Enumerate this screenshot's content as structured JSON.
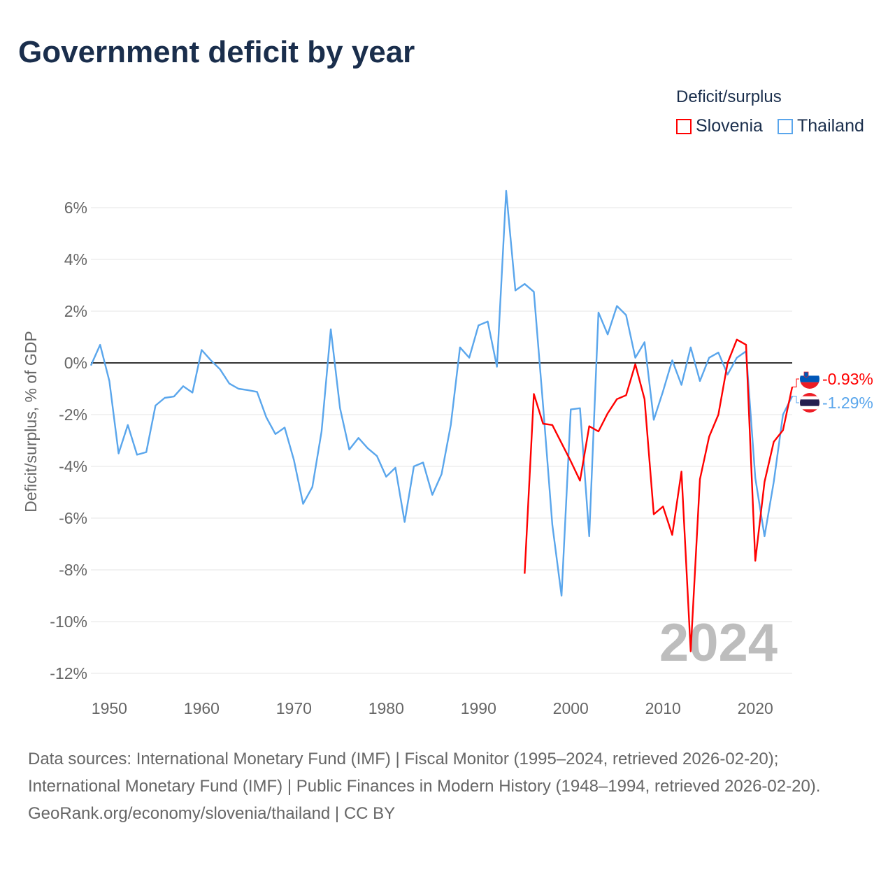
{
  "title": "Government deficit by year",
  "legend": {
    "title": "Deficit/surplus",
    "items": [
      {
        "label": "Slovenia",
        "color": "#ff0000"
      },
      {
        "label": "Thailand",
        "color": "#5aa6ec"
      }
    ]
  },
  "watermark_year": "2024",
  "chart_data": {
    "type": "line",
    "title": "Government deficit by year",
    "xlabel": "",
    "ylabel": "Deficit/surplus, % of GDP",
    "xlim": [
      1948,
      2024
    ],
    "ylim": [
      -12.6,
      7
    ],
    "yticks": [
      6,
      4,
      2,
      0,
      -2,
      -4,
      -6,
      -8,
      -10,
      -12
    ],
    "ytick_labels": [
      "6%",
      "4%",
      "2%",
      "0%",
      "-2%",
      "-4%",
      "-6%",
      "-8%",
      "-10%",
      "-12%"
    ],
    "xticks": [
      1950,
      1960,
      1970,
      1980,
      1990,
      2000,
      2010,
      2020
    ],
    "xtick_labels": [
      "1950",
      "1960",
      "1970",
      "1980",
      "1990",
      "2000",
      "2010",
      "2020"
    ],
    "grid": true,
    "legend_position": "top-right",
    "series": [
      {
        "name": "Thailand",
        "color": "#5aa6ec",
        "end_label": "-1.29%",
        "start_year": 1948,
        "values": [
          -0.1,
          0.7,
          -0.7,
          -3.5,
          -2.4,
          -3.55,
          -3.45,
          -1.65,
          -1.35,
          -1.3,
          -0.9,
          -1.15,
          0.5,
          0.1,
          -0.25,
          -0.8,
          -1.0,
          -1.05,
          -1.12,
          -2.1,
          -2.75,
          -2.5,
          -3.75,
          -5.45,
          -4.8,
          -2.65,
          1.3,
          -1.75,
          -3.35,
          -2.9,
          -3.3,
          -3.6,
          -4.4,
          -4.05,
          -6.15,
          -4.0,
          -3.85,
          -5.1,
          -4.3,
          -2.4,
          0.6,
          0.2,
          1.45,
          1.6,
          -0.15,
          6.65,
          2.8,
          3.05,
          2.75,
          -1.65,
          -6.25,
          -9.0,
          -1.8,
          -1.75,
          -6.7,
          1.95,
          1.1,
          2.2,
          1.85,
          0.2,
          0.8,
          -2.2,
          -1.1,
          0.1,
          -0.85,
          0.6,
          -0.7,
          0.2,
          0.4,
          -0.45,
          0.2,
          0.45,
          -4.45,
          -6.7,
          -4.6,
          -2.0,
          -1.29
        ]
      },
      {
        "name": "Slovenia",
        "color": "#ff0000",
        "end_label": "-0.93%",
        "start_year": 1995,
        "values": [
          -8.15,
          -1.2,
          -2.35,
          -2.4,
          -3.1,
          -3.8,
          -4.55,
          -2.45,
          -2.65,
          -1.95,
          -1.4,
          -1.25,
          -0.05,
          -1.4,
          -5.85,
          -5.55,
          -6.65,
          -4.2,
          -11.15,
          -4.5,
          -2.85,
          -2.0,
          0.0,
          0.9,
          0.7,
          -7.65,
          -4.6,
          -3.05,
          -2.6,
          -0.93
        ]
      }
    ]
  },
  "source": {
    "line1": "Data sources: International Monetary Fund (IMF) | Fiscal Monitor (1995–2024, retrieved 2026-02-20); International Monetary Fund (IMF) | Public Finances in Modern History (1948–1994, retrieved 2026-02-20).",
    "line2": "GeoRank.org/economy/slovenia/thailand | CC BY"
  }
}
